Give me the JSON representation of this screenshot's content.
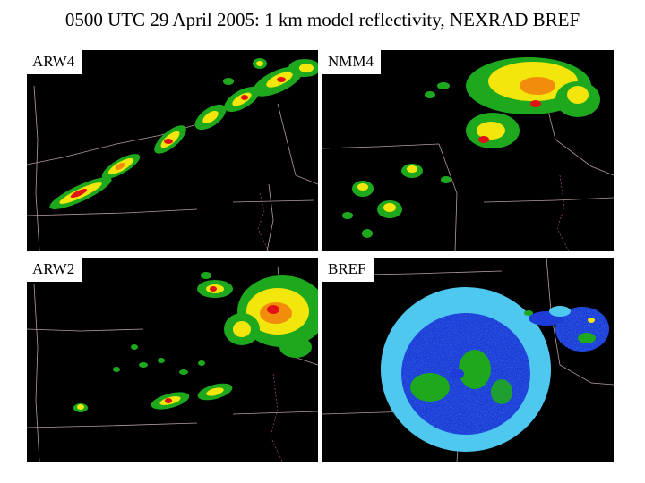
{
  "title": "0500 UTC 29 April 2005:  1 km model reflectivity, NEXRAD BREF",
  "panels": [
    {
      "label": "ARW4"
    },
    {
      "label": "NMM4"
    },
    {
      "label": "ARW2"
    },
    {
      "label": "BREF"
    }
  ],
  "colors": {
    "background": "#000000",
    "border_lines": "#d8b8b8",
    "refl_green": "#1ea81e",
    "refl_yellow": "#f2e60c",
    "refl_orange": "#f28c0c",
    "refl_red": "#e01414",
    "radar_lightblue": "#4fc8f0",
    "radar_blue": "#1e3cd8"
  }
}
